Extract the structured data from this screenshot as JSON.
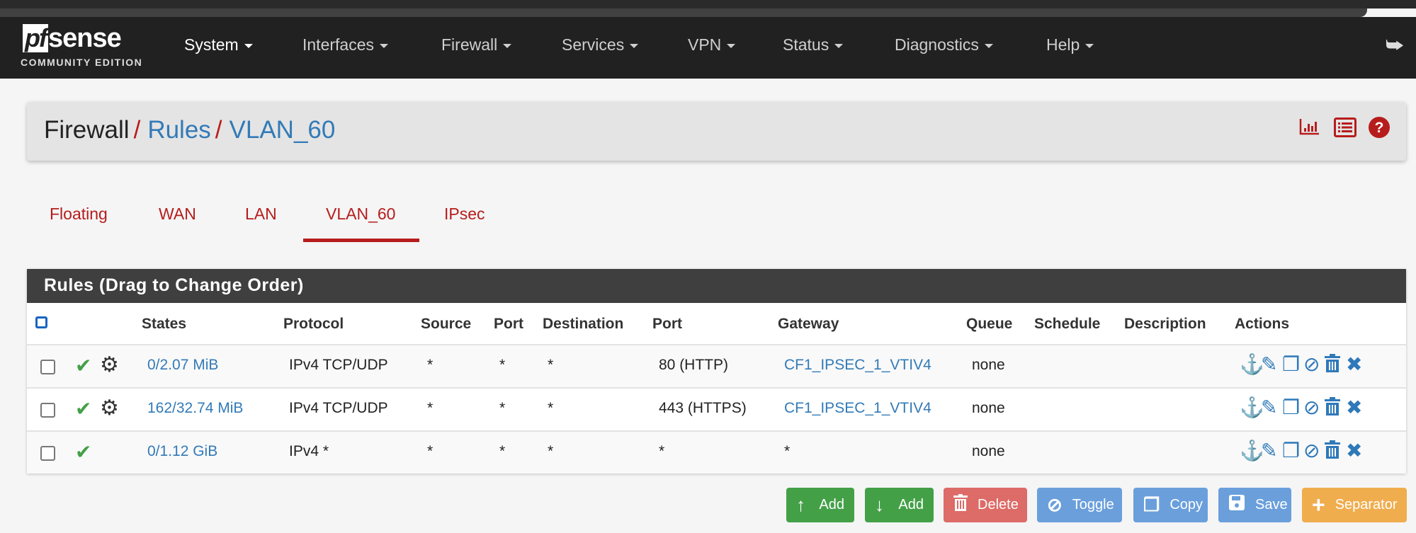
{
  "brand": {
    "logo_pf": "pf",
    "logo_sense": "sense",
    "edition": "COMMUNITY EDITION"
  },
  "nav": {
    "items": [
      {
        "label": "System"
      },
      {
        "label": "Interfaces"
      },
      {
        "label": "Firewall"
      },
      {
        "label": "Services"
      },
      {
        "label": "VPN"
      },
      {
        "label": "Status"
      },
      {
        "label": "Diagnostics"
      },
      {
        "label": "Help"
      }
    ],
    "logout_icon": "sign-out-icon"
  },
  "breadcrumb": {
    "root": "Firewall",
    "sep": "/",
    "level1": "Rules",
    "level2": "VLAN_60"
  },
  "header_icons": [
    "bar-chart-icon",
    "list-icon",
    "question-circle-icon"
  ],
  "tabs": [
    {
      "label": "Floating"
    },
    {
      "label": "WAN"
    },
    {
      "label": "LAN"
    },
    {
      "label": "VLAN_60",
      "active": true
    },
    {
      "label": "IPsec"
    }
  ],
  "table": {
    "title": "Rules (Drag to Change Order)",
    "columns": [
      "States",
      "Protocol",
      "Source",
      "Port",
      "Destination",
      "Port",
      "Gateway",
      "Queue",
      "Schedule",
      "Description",
      "Actions"
    ],
    "rows": [
      {
        "states": "0/2.07 MiB",
        "protocol": "IPv4 TCP/UDP",
        "source": "*",
        "sport": "*",
        "destination": "*",
        "dport": "80 (HTTP)",
        "gateway": "CF1_IPSEC_1_VTIV4",
        "queue": "none",
        "schedule": "",
        "description": "",
        "enabled": true,
        "advanced": true
      },
      {
        "states": "162/32.74 MiB",
        "protocol": "IPv4 TCP/UDP",
        "source": "*",
        "sport": "*",
        "destination": "*",
        "dport": "443 (HTTPS)",
        "gateway": "CF1_IPSEC_1_VTIV4",
        "queue": "none",
        "schedule": "",
        "description": "",
        "enabled": true,
        "advanced": true
      },
      {
        "states": "0/1.12 GiB",
        "protocol": "IPv4 *",
        "source": "*",
        "sport": "*",
        "destination": "*",
        "dport": "*",
        "gateway": "*",
        "queue": "none",
        "schedule": "",
        "description": "",
        "enabled": true,
        "advanced": false
      }
    ],
    "action_icons": [
      "anchor-icon",
      "pencil-icon",
      "copy-icon",
      "ban-icon",
      "trash-icon",
      "times-icon"
    ]
  },
  "buttons": {
    "add_top": "Add",
    "add_bottom": "Add",
    "delete": "Delete",
    "toggle": "Toggle",
    "copy": "Copy",
    "save": "Save",
    "separator": "Separator"
  },
  "colors": {
    "navbar": "#212121",
    "accent_red": "#b71c1c",
    "link_blue": "#337ab7",
    "success": "#43a047",
    "danger": "#d9534f",
    "info": "#6a9fdc",
    "warning": "#f0ad4e"
  }
}
